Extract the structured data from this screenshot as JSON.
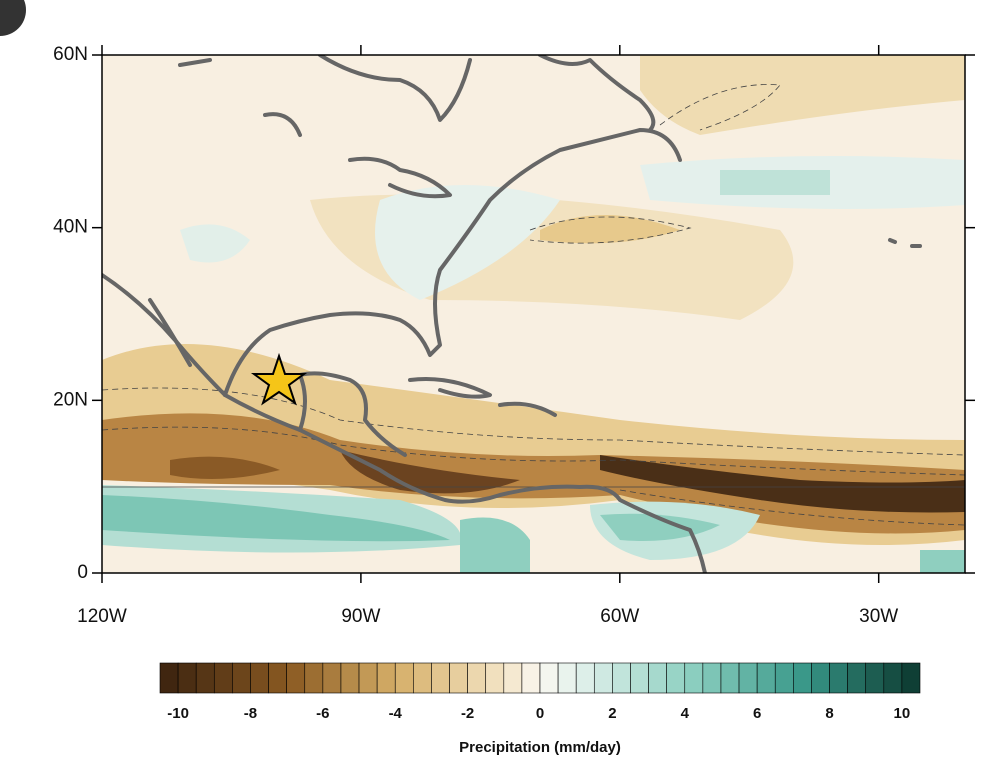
{
  "map": {
    "lat_axis": {
      "lim": [
        0,
        60
      ],
      "ticks": [
        {
          "value": 60,
          "label": "60N"
        },
        {
          "value": 40,
          "label": "40N"
        },
        {
          "value": 20,
          "label": "20N"
        },
        0
      ]
    },
    "lon_axis": {
      "lim": [
        -120,
        -20
      ],
      "ticks": [
        {
          "value": -120,
          "label": "120W"
        },
        {
          "value": -90,
          "label": "90W"
        },
        {
          "value": -60,
          "label": "60W"
        },
        {
          "value": -30,
          "label": "30W"
        }
      ]
    },
    "colorbar": {
      "lim": [
        -10.5,
        10.5
      ],
      "step": 0.5,
      "ticks": [
        -10,
        -8,
        -6,
        -4,
        -2,
        0,
        2,
        4,
        6,
        8,
        10
      ],
      "label": "Precipitation (mm/day)"
    }
  }
}
